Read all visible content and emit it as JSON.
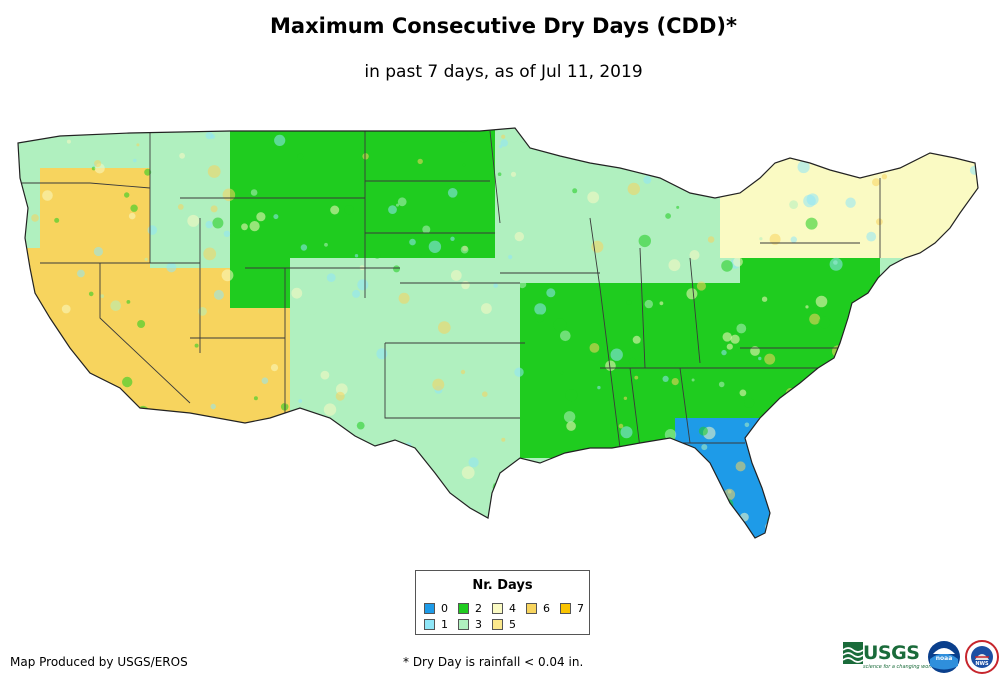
{
  "title": "Maximum Consecutive Dry Days (CDD)*",
  "subtitle": "in past 7 days, as of Jul 11, 2019",
  "legend": {
    "title": "Nr. Days",
    "items": [
      {
        "label": "0",
        "color": "#1e9be8"
      },
      {
        "label": "1",
        "color": "#8fe6f7"
      },
      {
        "label": "2",
        "color": "#1fcc1f"
      },
      {
        "label": "3",
        "color": "#b0f0bf"
      },
      {
        "label": "4",
        "color": "#fafac3"
      },
      {
        "label": "5",
        "color": "#fbe88c"
      },
      {
        "label": "6",
        "color": "#f7d45e"
      },
      {
        "label": "7",
        "color": "#fac400"
      }
    ]
  },
  "credit": "Map Produced by USGS/EROS",
  "footnote": "* Dry Day is rainfall < 0.04 in.",
  "logos": {
    "usgs_wordmark": "USGS",
    "usgs_tagline": "science for a changing world",
    "noaa": "noaa",
    "nws": "NWS"
  },
  "map_regions": [
    {
      "name": "pacific-northwest",
      "category": "3"
    },
    {
      "name": "interior-west",
      "category": "6"
    },
    {
      "name": "california-southwest",
      "category": "6"
    },
    {
      "name": "northern-rockies",
      "category": "3"
    },
    {
      "name": "northern-plains",
      "category": "2"
    },
    {
      "name": "central-plains",
      "category": "3"
    },
    {
      "name": "southern-plains",
      "category": "3"
    },
    {
      "name": "upper-midwest",
      "category": "3"
    },
    {
      "name": "lower-mississippi",
      "category": "2"
    },
    {
      "name": "southeast",
      "category": "2"
    },
    {
      "name": "florida-gulf-coast",
      "category": "0"
    },
    {
      "name": "mid-atlantic",
      "category": "2"
    },
    {
      "name": "northeast",
      "category": "4"
    }
  ]
}
